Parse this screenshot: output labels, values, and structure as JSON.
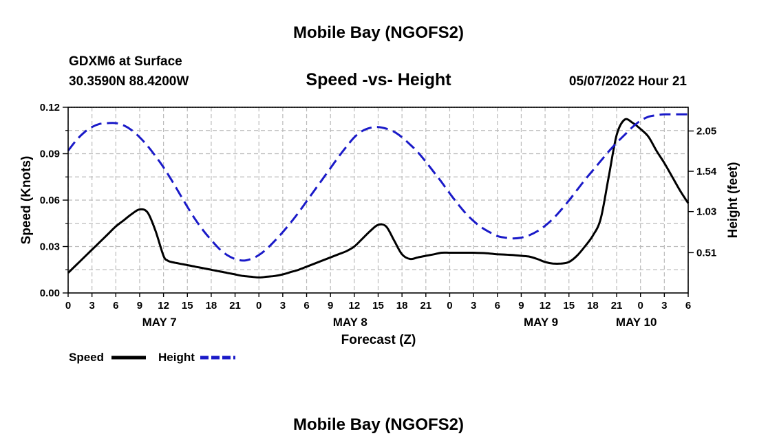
{
  "page_title": "Mobile Bay (NGOFS2)",
  "footer_title": "Mobile Bay (NGOFS2)",
  "chart_data": {
    "type": "line",
    "title": "Speed -vs- Height",
    "station": "GDXM6 at Surface",
    "coordinates": "30.3590N  88.4200W",
    "timestamp": "05/07/2022 Hour 21",
    "xlabel": "Forecast (Z)",
    "ylabel_left": "Speed (Knots)",
    "ylabel_right": "Height (feet)",
    "x_range_hours": [
      0,
      78
    ],
    "y_left_range": [
      0,
      0.12
    ],
    "y_right_range": [
      0.0,
      2.35
    ],
    "x_tick_labels": [
      "0",
      "3",
      "6",
      "9",
      "12",
      "15",
      "18",
      "21",
      "0",
      "3",
      "6",
      "9",
      "12",
      "15",
      "18",
      "21",
      "0",
      "3",
      "6",
      "9",
      "12",
      "15",
      "18",
      "21",
      "0",
      "3",
      "6"
    ],
    "y_left_ticks": [
      "0.00",
      "0.03",
      "0.06",
      "0.09",
      "0.12"
    ],
    "y_left_tick_values": [
      0,
      0.03,
      0.06,
      0.09,
      0.12
    ],
    "y_right_ticks": [
      "0.51",
      "1.03",
      "1.54",
      "2.05"
    ],
    "y_right_tick_values": [
      0.51,
      1.03,
      1.54,
      2.05
    ],
    "date_labels": [
      {
        "label": "MAY 7",
        "hour": 12
      },
      {
        "label": "MAY 8",
        "hour": 36
      },
      {
        "label": "MAY 9",
        "hour": 60
      },
      {
        "label": "MAY 10",
        "hour": 72
      }
    ],
    "grid": true,
    "legend_position": "bottom-left",
    "series": [
      {
        "name": "Speed",
        "axis": "left",
        "color": "#000000",
        "dash": "solid",
        "x": [
          0,
          1,
          2,
          3,
          4,
          5,
          6,
          7,
          8,
          9,
          10,
          11,
          12,
          12.5,
          13,
          14,
          15,
          16,
          17,
          18,
          19,
          20,
          21,
          22,
          23,
          24,
          25,
          26,
          27,
          28,
          29,
          30,
          31,
          32,
          33,
          34,
          35,
          36,
          37,
          38,
          39,
          40,
          41,
          42,
          43,
          44,
          45,
          46,
          47,
          48,
          49,
          50,
          51,
          52,
          53,
          54,
          55,
          56,
          57,
          58,
          59,
          60,
          61,
          62,
          63,
          64,
          65,
          66,
          67,
          68,
          69,
          70,
          71,
          72,
          73,
          74,
          75,
          76,
          77,
          78
        ],
        "values": [
          0.013,
          0.018,
          0.023,
          0.028,
          0.033,
          0.038,
          0.043,
          0.047,
          0.051,
          0.054,
          0.052,
          0.04,
          0.024,
          0.021,
          0.02,
          0.019,
          0.018,
          0.017,
          0.016,
          0.015,
          0.014,
          0.013,
          0.012,
          0.011,
          0.0105,
          0.01,
          0.0105,
          0.011,
          0.012,
          0.0135,
          0.015,
          0.017,
          0.019,
          0.021,
          0.023,
          0.025,
          0.027,
          0.03,
          0.035,
          0.04,
          0.044,
          0.043,
          0.034,
          0.025,
          0.022,
          0.023,
          0.024,
          0.025,
          0.026,
          0.026,
          0.026,
          0.026,
          0.026,
          0.0258,
          0.0255,
          0.025,
          0.0248,
          0.0245,
          0.024,
          0.0235,
          0.022,
          0.02,
          0.019,
          0.019,
          0.02,
          0.024,
          0.03,
          0.037,
          0.048,
          0.075,
          0.102,
          0.112,
          0.11,
          0.106,
          0.101,
          0.092,
          0.084,
          0.075,
          0.066,
          0.058
        ]
      },
      {
        "name": "Height",
        "axis": "right",
        "color": "#1a1ac8",
        "dash": "dashed",
        "x": [
          0,
          1,
          2,
          3,
          4,
          5,
          6,
          7,
          8,
          9,
          10,
          11,
          12,
          13,
          14,
          15,
          16,
          17,
          18,
          19,
          20,
          21,
          22,
          23,
          24,
          25,
          26,
          27,
          28,
          29,
          30,
          31,
          32,
          33,
          34,
          35,
          36,
          37,
          38,
          39,
          40,
          41,
          42,
          43,
          44,
          45,
          46,
          47,
          48,
          49,
          50,
          51,
          52,
          53,
          54,
          55,
          56,
          57,
          58,
          59,
          60,
          61,
          62,
          63,
          64,
          65,
          66,
          67,
          68,
          69,
          70,
          71,
          72,
          73,
          74,
          75,
          76,
          77,
          78
        ],
        "values": [
          1.8,
          1.93,
          2.03,
          2.1,
          2.14,
          2.15,
          2.15,
          2.12,
          2.06,
          1.97,
          1.86,
          1.73,
          1.59,
          1.43,
          1.26,
          1.09,
          0.93,
          0.79,
          0.67,
          0.56,
          0.48,
          0.43,
          0.41,
          0.43,
          0.48,
          0.56,
          0.66,
          0.77,
          0.89,
          1.02,
          1.16,
          1.3,
          1.44,
          1.58,
          1.72,
          1.85,
          1.97,
          2.05,
          2.09,
          2.1,
          2.08,
          2.04,
          1.97,
          1.88,
          1.78,
          1.66,
          1.53,
          1.4,
          1.26,
          1.13,
          1.01,
          0.91,
          0.83,
          0.77,
          0.72,
          0.7,
          0.69,
          0.7,
          0.73,
          0.78,
          0.85,
          0.94,
          1.05,
          1.17,
          1.3,
          1.43,
          1.55,
          1.67,
          1.79,
          1.9,
          2.0,
          2.1,
          2.18,
          2.23,
          2.25,
          2.26,
          2.26,
          2.26,
          2.26
        ]
      }
    ]
  }
}
